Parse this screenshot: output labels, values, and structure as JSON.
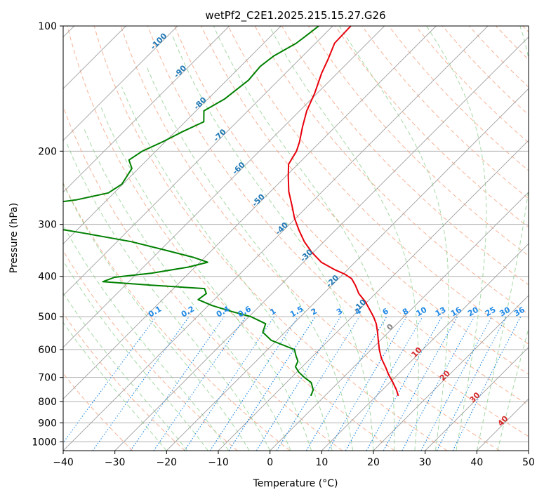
{
  "chart_data": {
    "type": "line",
    "title": "wetPf2_C2E1.2025.215.15.27.G26",
    "xlabel": "Temperature (°C)",
    "ylabel": "Pressure (hPa)",
    "xlim": [
      -40,
      50
    ],
    "ylim": [
      1050,
      100
    ],
    "y_scale": "log",
    "grid": true,
    "x_ticks": [
      -40,
      -30,
      -20,
      -10,
      0,
      10,
      20,
      30,
      40,
      50
    ],
    "y_ticks": [
      100,
      200,
      300,
      400,
      500,
      600,
      700,
      800,
      900,
      1000
    ],
    "colors": {
      "temperature": "#e8000b",
      "dewpoint": "#008000",
      "isotherm": "#a0a0a0",
      "isotherm_label": "#1f77b4",
      "dry_adiabat": "#f4a582",
      "moist_adiabat": "#8fcf8f",
      "mixing_ratio": "#1e88e5",
      "freezing_level_label": "#808080",
      "warm_isotherm_label": "#d62728"
    },
    "skew_isotherm_labels": [
      {
        "t": -100,
        "p": 110,
        "text": "-100"
      },
      {
        "t": -90,
        "p": 130,
        "text": "-90"
      },
      {
        "t": -80,
        "p": 155,
        "text": "-80"
      },
      {
        "t": -70,
        "p": 185,
        "text": "-70"
      },
      {
        "t": -60,
        "p": 222,
        "text": "-60"
      },
      {
        "t": -50,
        "p": 265,
        "text": "-50"
      },
      {
        "t": -40,
        "p": 310,
        "text": "-40"
      },
      {
        "t": -30,
        "p": 360,
        "text": "-30"
      },
      {
        "t": -20,
        "p": 415,
        "text": "-20"
      },
      {
        "t": -10,
        "p": 475,
        "text": "-10"
      }
    ],
    "warm_isotherm_labels": [
      {
        "t": 0,
        "p": 535,
        "text": "0"
      },
      {
        "t": 10,
        "p": 615,
        "text": "10"
      },
      {
        "t": 20,
        "p": 700,
        "text": "20"
      },
      {
        "t": 30,
        "p": 790,
        "text": "30"
      },
      {
        "t": 40,
        "p": 900,
        "text": "40"
      }
    ],
    "mixing_ratio_labels": [
      "0.1",
      "0.2",
      "0.4",
      "0.6",
      "1",
      "1.5",
      "2",
      "3",
      "4",
      "6",
      "8",
      "10",
      "13",
      "16",
      "20",
      "25",
      "30",
      "36"
    ],
    "series": [
      {
        "name": "Temperature",
        "points": [
          [
            100,
            -66.5
          ],
          [
            110,
            -66.3
          ],
          [
            120,
            -64.5
          ],
          [
            130,
            -63.0
          ],
          [
            145,
            -60.5
          ],
          [
            160,
            -58.6
          ],
          [
            175,
            -56.3
          ],
          [
            190,
            -54.0
          ],
          [
            200,
            -52.8
          ],
          [
            215,
            -51.8
          ],
          [
            230,
            -49.5
          ],
          [
            250,
            -46.5
          ],
          [
            270,
            -43.2
          ],
          [
            290,
            -40.2
          ],
          [
            310,
            -37.0
          ],
          [
            330,
            -33.8
          ],
          [
            350,
            -30.3
          ],
          [
            370,
            -26.5
          ],
          [
            385,
            -22.6
          ],
          [
            395,
            -19.7
          ],
          [
            405,
            -17.5
          ],
          [
            420,
            -15.5
          ],
          [
            440,
            -13.2
          ],
          [
            460,
            -10.4
          ],
          [
            480,
            -8.1
          ],
          [
            500,
            -5.9
          ],
          [
            520,
            -4.0
          ],
          [
            545,
            -2.1
          ],
          [
            570,
            -0.4
          ],
          [
            600,
            1.6
          ],
          [
            630,
            3.7
          ],
          [
            660,
            6.1
          ],
          [
            690,
            8.3
          ],
          [
            720,
            10.6
          ],
          [
            750,
            12.7
          ],
          [
            775,
            14.2
          ]
        ]
      },
      {
        "name": "Dewpoint",
        "points": [
          [
            100,
            -72.7
          ],
          [
            105,
            -73.2
          ],
          [
            110,
            -73.7
          ],
          [
            118,
            -75.6
          ],
          [
            125,
            -76.2
          ],
          [
            135,
            -75.8
          ],
          [
            150,
            -76.8
          ],
          [
            160,
            -78.5
          ],
          [
            170,
            -76.4
          ],
          [
            180,
            -78.7
          ],
          [
            190,
            -80.5
          ],
          [
            200,
            -82.6
          ],
          [
            210,
            -83.5
          ],
          [
            220,
            -81.3
          ],
          [
            240,
            -80.2
          ],
          [
            252,
            -81.1
          ],
          [
            262,
            -86.0
          ],
          [
            272,
            -95.0
          ],
          [
            280,
            -104.2
          ],
          [
            285,
            -108.2
          ],
          [
            290,
            -104.5
          ],
          [
            300,
            -89.8
          ],
          [
            315,
            -78.0
          ],
          [
            330,
            -67.3
          ],
          [
            345,
            -59.5
          ],
          [
            360,
            -52.2
          ],
          [
            370,
            -48.5
          ],
          [
            380,
            -51.3
          ],
          [
            393,
            -57.2
          ],
          [
            402,
            -63.6
          ],
          [
            412,
            -65.0
          ],
          [
            420,
            -55.0
          ],
          [
            428,
            -44.0
          ],
          [
            440,
            -42.7
          ],
          [
            455,
            -43.1
          ],
          [
            470,
            -39.3
          ],
          [
            485,
            -34.6
          ],
          [
            500,
            -29.6
          ],
          [
            520,
            -25.4
          ],
          [
            545,
            -24.3
          ],
          [
            570,
            -21.1
          ],
          [
            600,
            -14.8
          ],
          [
            620,
            -13.4
          ],
          [
            640,
            -11.9
          ],
          [
            660,
            -11.3
          ],
          [
            680,
            -9.6
          ],
          [
            700,
            -7.5
          ],
          [
            720,
            -5.2
          ],
          [
            750,
            -3.4
          ],
          [
            775,
            -2.7
          ]
        ]
      }
    ]
  }
}
